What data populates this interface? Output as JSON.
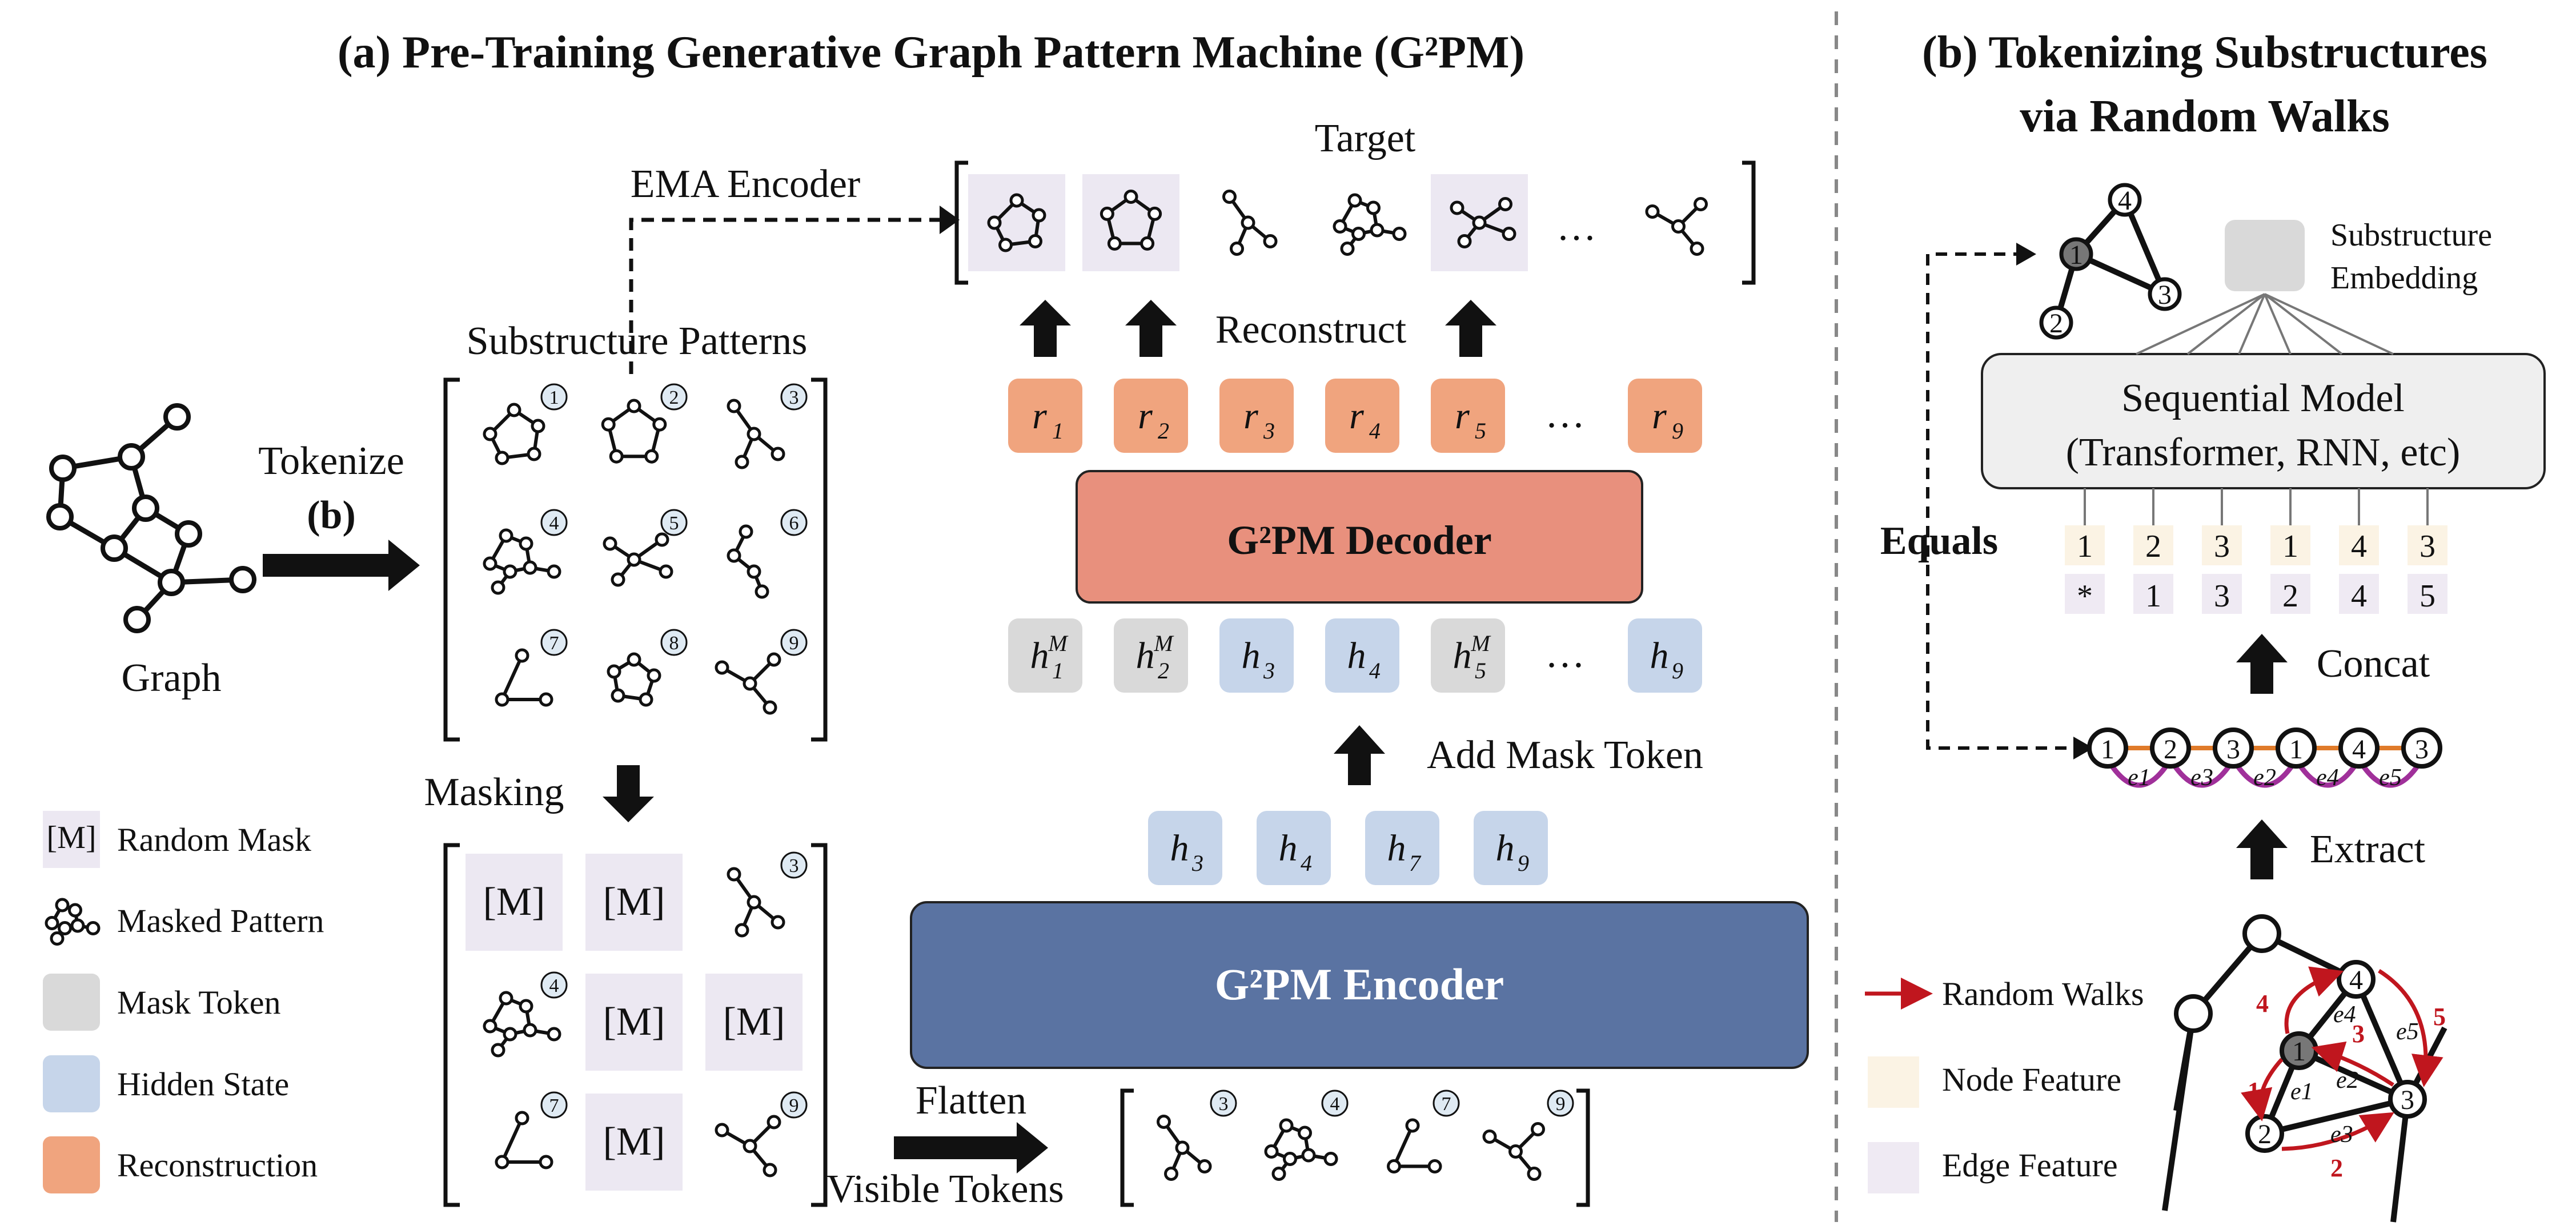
{
  "panel_a": {
    "title": "(a) Pre-Training Generative Graph Pattern Machine (G²PM)",
    "graph_label": "Graph",
    "tokenize_label": "Tokenize",
    "tokenize_ref": "(b)",
    "patterns_label": "Substructure Patterns",
    "pattern_numbers": [
      "1",
      "2",
      "3",
      "4",
      "5",
      "6",
      "7",
      "8",
      "9"
    ],
    "masking_label": "Masking",
    "mask_token_text": "[M]",
    "masked_visible_numbers": [
      "3",
      "4",
      "7",
      "9"
    ],
    "ema_label": "EMA Encoder",
    "target_label": "Target",
    "ellipsis": "…",
    "reconstruct_label": "Reconstruct",
    "recon_tokens": [
      "r1",
      "r2",
      "r3",
      "r4",
      "r5",
      "…",
      "r9"
    ],
    "decoder_label": "G²PM Decoder",
    "hidden_tokens": [
      "h1M",
      "h2M",
      "h3",
      "h4",
      "h5M",
      "…",
      "h9"
    ],
    "add_mask_label": "Add Mask Token",
    "encoder_inputs": [
      "h3",
      "h4",
      "h7",
      "h9"
    ],
    "encoder_label": "G²PM Encoder",
    "flatten_label": "Flatten",
    "visible_label": "Visible Tokens",
    "visible_numbers": [
      "3",
      "4",
      "7",
      "9"
    ]
  },
  "legend": {
    "items": [
      {
        "key": "random-mask",
        "label": "Random Mask",
        "swatch_text": "[M]"
      },
      {
        "key": "masked-pattern",
        "label": "Masked Pattern"
      },
      {
        "key": "mask-token",
        "label": "Mask Token",
        "color": "#d9d9d9"
      },
      {
        "key": "hidden-state",
        "label": "Hidden State",
        "color": "#c6d5ea"
      },
      {
        "key": "reconstruction",
        "label": "Reconstruction",
        "color": "#f0a47e"
      }
    ]
  },
  "panel_b": {
    "title_line1": "(b) Tokenizing Substructures",
    "title_line2": "via Random Walks",
    "embedding_label_1": "Substructure",
    "embedding_label_2": "Embedding",
    "model_line1": "Sequential Model",
    "model_line2": "(Transformer, RNN, etc)",
    "equals_label": "Equals",
    "node_seq": [
      "1",
      "2",
      "3",
      "1",
      "4",
      "3"
    ],
    "edge_seq": [
      "*",
      "1",
      "3",
      "2",
      "4",
      "5"
    ],
    "concat_label": "Concat",
    "walk_nodes": [
      "1",
      "2",
      "3",
      "1",
      "4",
      "3"
    ],
    "walk_edges": [
      "e1",
      "e3",
      "e2",
      "e4",
      "e5"
    ],
    "extract_label": "Extract",
    "legend": [
      {
        "key": "random-walks",
        "label": "Random Walks",
        "color": "#c0161e"
      },
      {
        "key": "node-feature",
        "label": "Node Feature",
        "color": "#fbf3e4"
      },
      {
        "key": "edge-feature",
        "label": "Edge Feature",
        "color": "#efeaf3"
      }
    ],
    "small_graph_nodes": [
      "1",
      "2",
      "3",
      "4"
    ],
    "big_graph_nodes": [
      "1",
      "2",
      "3",
      "4"
    ],
    "big_graph_edges": [
      "e1",
      "e2",
      "e3",
      "e4",
      "e5"
    ],
    "walk_steps": [
      "1",
      "2",
      "3",
      "4",
      "5"
    ]
  },
  "colors": {
    "mask_token": "#d9d9d9",
    "hidden_state": "#c6d5ea",
    "reconstruction": "#f0a47e",
    "decoder": "#e8907d",
    "encoder": "#5a73a2",
    "target_bg": "#ece8f2",
    "masked_bg": "#ece8f2",
    "walk_red": "#c0161e",
    "walk_purple": "#a0309a",
    "walk_orange": "#e07b2a"
  }
}
